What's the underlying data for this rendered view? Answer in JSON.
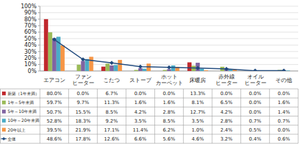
{
  "chart_data": {
    "type": "bar",
    "categories": [
      "エアコン",
      "ファン\nヒーター",
      "こたつ",
      "ストーブ",
      "ホット\nカーペット",
      "床暖房",
      "赤外線\nヒーター",
      "オイル\nヒーター",
      "その他"
    ],
    "ylim": [
      0,
      100
    ],
    "yticks": [
      {
        "value": 0,
        "label": "0%"
      },
      {
        "value": 10,
        "label": "10%"
      },
      {
        "value": 20,
        "label": "20%"
      },
      {
        "value": 30,
        "label": "30%"
      },
      {
        "value": 40,
        "label": "40%"
      },
      {
        "value": 50,
        "label": "50%"
      },
      {
        "value": 60,
        "label": "60%"
      },
      {
        "value": 70,
        "label": "70%"
      },
      {
        "value": 80,
        "label": "80%"
      },
      {
        "value": 90,
        "label": "90%"
      },
      {
        "value": 100,
        "label": "100%"
      }
    ],
    "grid": true,
    "series": [
      {
        "name": "新築（1年未満）",
        "color": "#c0282d",
        "type": "bar",
        "values": [
          80.0,
          0.0,
          6.7,
          0.0,
          0.0,
          13.3,
          0.0,
          0.0,
          0.0
        ],
        "value_labels": [
          "80.0%",
          "0.0%",
          "6.7%",
          "0.0%",
          "0.0%",
          "13.3%",
          "0.0%",
          "0.0%",
          "0.0%"
        ]
      },
      {
        "name": "1年～5年未満",
        "color": "#9bbb59",
        "type": "bar",
        "values": [
          59.7,
          9.7,
          11.3,
          1.6,
          1.6,
          8.1,
          6.5,
          0.0,
          1.6
        ],
        "value_labels": [
          "59.7%",
          "9.7%",
          "11.3%",
          "1.6%",
          "1.6%",
          "8.1%",
          "6.5%",
          "0.0%",
          "1.6%"
        ]
      },
      {
        "name": "5年～10年未満",
        "color": "#8064a2",
        "type": "bar",
        "values": [
          50.7,
          15.5,
          8.5,
          4.2,
          2.8,
          12.7,
          4.2,
          0.0,
          1.4
        ],
        "value_labels": [
          "50.7%",
          "15.5%",
          "8.5%",
          "4.2%",
          "2.8%",
          "12.7%",
          "4.2%",
          "0.0%",
          "1.4%"
        ]
      },
      {
        "name": "10年～20年未満",
        "color": "#4bacc6",
        "type": "bar",
        "values": [
          52.8,
          18.3,
          9.2,
          3.5,
          8.5,
          3.5,
          2.8,
          0.7,
          0.7
        ],
        "value_labels": [
          "52.8%",
          "18.3%",
          "9.2%",
          "3.5%",
          "8.5%",
          "3.5%",
          "2.8%",
          "0.7%",
          "0.7%"
        ]
      },
      {
        "name": "20年以上",
        "color": "#f79646",
        "type": "bar",
        "values": [
          39.5,
          21.9,
          17.1,
          11.4,
          6.2,
          1.0,
          2.4,
          0.5,
          0.0
        ],
        "value_labels": [
          "39.5%",
          "21.9%",
          "17.1%",
          "11.4%",
          "6.2%",
          "1.0%",
          "2.4%",
          "0.5%",
          "0.0%"
        ]
      },
      {
        "name": "全体",
        "color": "#1f497d",
        "type": "line",
        "marker": "diamond",
        "line_style": "solid",
        "values": [
          48.6,
          17.8,
          12.6,
          6.6,
          5.6,
          4.6,
          3.2,
          0.4,
          0.6
        ],
        "value_labels": [
          "48.6%",
          "17.8%",
          "12.6%",
          "6.6%",
          "5.6%",
          "4.6%",
          "3.2%",
          "0.4%",
          "0.6%"
        ]
      }
    ]
  }
}
